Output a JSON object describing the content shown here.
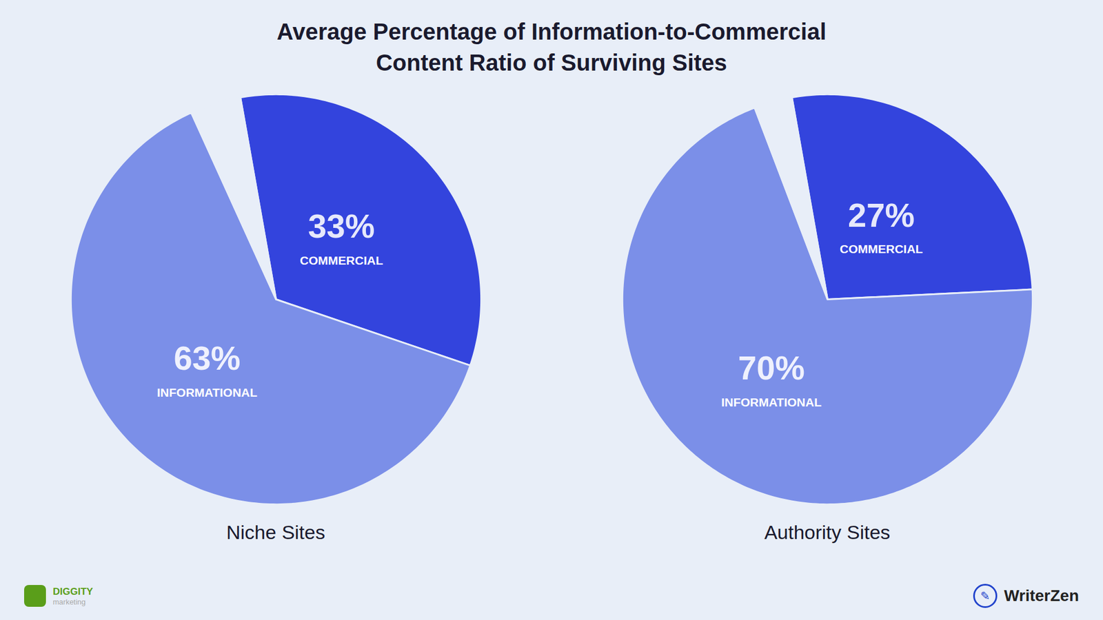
{
  "title": "Average Percentage of Information-to-Commercial\nContent Ratio of Surviving Sites",
  "annotations": [
    {
      "text": "DIGGITY",
      "color": "#5a9e1a"
    },
    {
      "text": "marketing",
      "color": "#aaaaaa"
    },
    {
      "text": "✎",
      "color": "#2244cc"
    },
    {
      "text": "WriterZen",
      "color": "#222222"
    }
  ],
  "chart_data": [
    {
      "type": "pie",
      "title": "Niche Sites",
      "categories": [
        "COMMERCIAL",
        "INFORMATIONAL",
        null
      ],
      "values": [
        33,
        63,
        4
      ],
      "value_labels": [
        "33%",
        "63%",
        null
      ],
      "colors": [
        "#3344dd",
        "#7b8fe8",
        "#e8eef8"
      ],
      "data_labels": true
    },
    {
      "type": "pie",
      "title": "Authority Sites",
      "categories": [
        "COMMERCIAL",
        "INFORMATIONAL",
        null
      ],
      "values": [
        27,
        70,
        3
      ],
      "value_labels": [
        "27%",
        "70%",
        null
      ],
      "colors": [
        "#3344dd",
        "#7b8fe8",
        "#e8eef8"
      ],
      "data_labels": true
    }
  ]
}
